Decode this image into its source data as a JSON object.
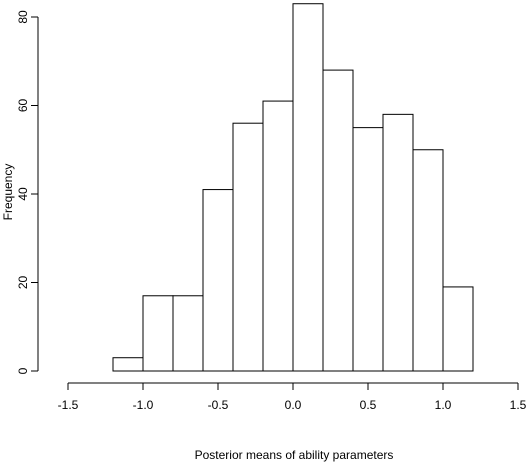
{
  "chart_data": {
    "type": "bar",
    "subtype": "histogram",
    "title": "",
    "xlabel": "Posterior means of ability parameters",
    "ylabel": "Frequency",
    "bin_edges": [
      -1.2,
      -1.0,
      -0.8,
      -0.6,
      -0.4,
      -0.2,
      0.0,
      0.2,
      0.4,
      0.6,
      0.8,
      1.0,
      1.2
    ],
    "values": [
      3,
      17,
      17,
      41,
      56,
      61,
      83,
      68,
      55,
      58,
      50,
      19
    ],
    "xlim": [
      -1.5,
      1.5
    ],
    "ylim": [
      0,
      80
    ],
    "xticks": [
      -1.5,
      -1.0,
      -0.5,
      0.0,
      0.5,
      1.0,
      1.5
    ],
    "xtick_labels": [
      "-1.5",
      "-1.0",
      "-0.5",
      "0.0",
      "0.5",
      "1.0",
      "1.5"
    ],
    "yticks": [
      0,
      20,
      40,
      60,
      80
    ],
    "ytick_labels": [
      "0",
      "20",
      "40",
      "60",
      "80"
    ],
    "bar_fill": "#ffffff",
    "bar_stroke": "#000000",
    "grid": false,
    "legend": "none"
  }
}
